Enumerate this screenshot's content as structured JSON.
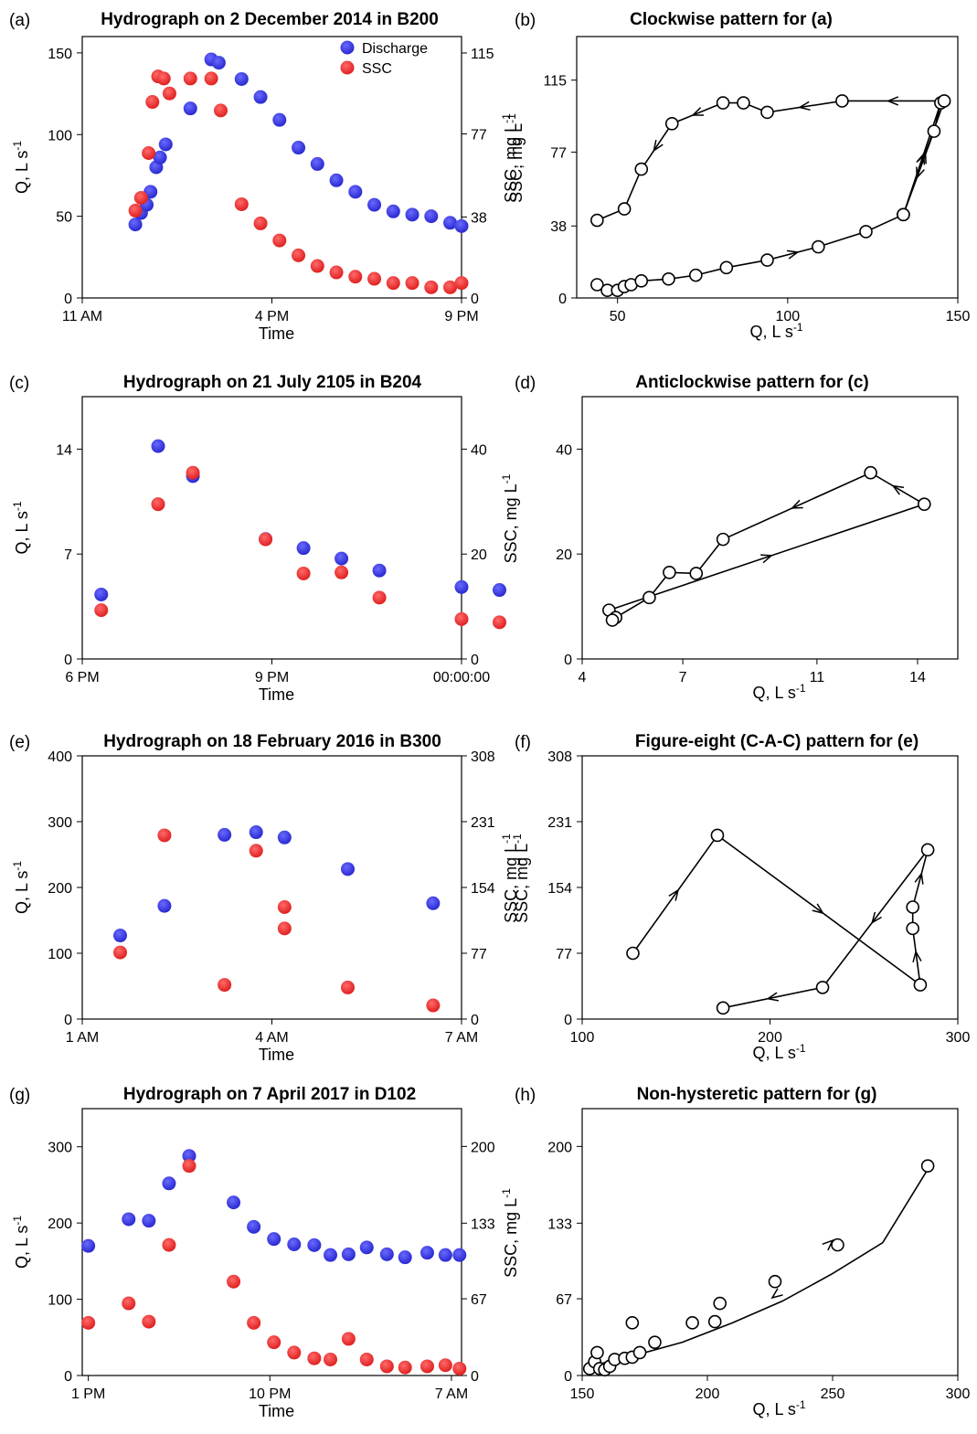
{
  "panels": [
    {
      "id": "a",
      "label": "(a)",
      "title": "Hydrograph on 2 December 2014 in B200",
      "kind": "hydrograph",
      "xlabel": "Time",
      "ylabel": "Q, L s",
      "ylabel_sup": "-1",
      "y2label": "SSC, mg L",
      "y2label_sup": "-1",
      "xticks": [
        {
          "v": 11,
          "l": "11 AM"
        },
        {
          "v": 16,
          "l": "4 PM"
        },
        {
          "v": 21,
          "l": "9 PM"
        }
      ],
      "xlim": [
        11,
        21
      ],
      "ylim": [
        0,
        160
      ],
      "y2lim": [
        0,
        122.7
      ],
      "yticks": [
        0,
        50,
        100,
        150
      ],
      "y2ticks": [
        0,
        38,
        77,
        115
      ],
      "legend": [
        {
          "label": "Discharge",
          "color": "#3333dd"
        },
        {
          "label": "SSC",
          "color": "#ee2222"
        }
      ]
    },
    {
      "id": "b",
      "label": "(b)",
      "title": "Clockwise pattern for (a)",
      "kind": "hysteresis",
      "xlabel": "Q, L s",
      "xlabel_sup": "-1",
      "ylabel": "SSC, mg L",
      "ylabel_sup": "-1",
      "xlim": [
        38,
        150
      ],
      "ylim": [
        0,
        138
      ],
      "xticks": [
        50,
        100,
        150
      ],
      "yticks": [
        0,
        38,
        77,
        115
      ]
    },
    {
      "id": "c",
      "label": "(c)",
      "title": "Hydrograph on 21 July 2105 in B204",
      "kind": "hydrograph",
      "xlabel": "Time",
      "ylabel": "Q, L s",
      "ylabel_sup": "-1",
      "y2label": "SSC, mg L",
      "y2label_sup": "-1",
      "xticks": [
        {
          "v": 18,
          "l": "6 PM"
        },
        {
          "v": 21,
          "l": "9 PM"
        },
        {
          "v": 24,
          "l": "00:00:00"
        }
      ],
      "xlim": [
        18,
        24
      ],
      "ylim": [
        0,
        17.5
      ],
      "y2lim": [
        0,
        50
      ],
      "yticks": [
        0,
        7,
        14
      ],
      "y2ticks": [
        0,
        20,
        40
      ]
    },
    {
      "id": "d",
      "label": "(d)",
      "title": "Anticlockwise pattern for (c)",
      "kind": "hysteresis",
      "xlabel": "Q, L s",
      "xlabel_sup": "-1",
      "ylabel": "",
      "xlim": [
        4,
        15.2
      ],
      "ylim": [
        0,
        50
      ],
      "xticks": [
        4,
        7,
        11,
        14
      ],
      "yticks": [
        0,
        20,
        40
      ]
    },
    {
      "id": "e",
      "label": "(e)",
      "title": "Hydrograph on 18 February 2016 in B300",
      "kind": "hydrograph",
      "xlabel": "Time",
      "ylabel": "Q, L s",
      "ylabel_sup": "-1",
      "y2label": "SSC, mg L",
      "y2label_sup": "-1",
      "xticks": [
        {
          "v": 1,
          "l": "1 AM"
        },
        {
          "v": 4,
          "l": "4 AM"
        },
        {
          "v": 7,
          "l": "7 AM"
        }
      ],
      "xlim": [
        1,
        7
      ],
      "ylim": [
        0,
        400
      ],
      "y2lim": [
        0,
        308
      ],
      "yticks": [
        0,
        100,
        200,
        300,
        400
      ],
      "y2ticks": [
        0,
        77,
        154,
        231,
        308
      ]
    },
    {
      "id": "f",
      "label": "(f)",
      "title": "Figure-eight (C-A-C) pattern for (e)",
      "kind": "hysteresis",
      "xlabel": "Q, L s",
      "xlabel_sup": "-1",
      "ylabel": "SSC, mg L",
      "ylabel_sup": "-1",
      "xlim": [
        100,
        300
      ],
      "ylim": [
        0,
        308
      ],
      "xticks": [
        100,
        200,
        300
      ],
      "yticks": [
        0,
        77,
        154,
        231,
        308
      ]
    },
    {
      "id": "g",
      "label": "(g)",
      "title": "Hydrograph on 7 April 2017 in D102",
      "kind": "hydrograph",
      "xlabel": "Time",
      "ylabel": "Q, L s",
      "ylabel_sup": "-1",
      "y2label": "SSC, mg L",
      "y2label_sup": "-1",
      "xticks": [
        {
          "v": 13,
          "l": "1 PM"
        },
        {
          "v": 22,
          "l": "10 PM"
        },
        {
          "v": 31,
          "l": "7 AM"
        }
      ],
      "xlim": [
        12.7,
        31.5
      ],
      "ylim": [
        0,
        350
      ],
      "y2lim": [
        0,
        233
      ],
      "yticks": [
        0,
        100,
        200,
        300
      ],
      "y2ticks": [
        0,
        67,
        133,
        200
      ]
    },
    {
      "id": "h",
      "label": "(h)",
      "title": "Non-hysteretic pattern for (g)",
      "kind": "hysteresis",
      "xlabel": "Q, L s",
      "xlabel_sup": "-1",
      "ylabel": "",
      "xlim": [
        150,
        300
      ],
      "ylim": [
        0,
        233
      ],
      "xticks": [
        150,
        200,
        250,
        300
      ],
      "yticks": [
        0,
        67,
        133,
        200
      ]
    }
  ],
  "chart_data": [
    {
      "type": "scatter",
      "panel": "a",
      "series": [
        {
          "name": "Discharge",
          "axis": "left",
          "x": [
            12.4,
            12.55,
            12.7,
            12.8,
            12.95,
            13.05,
            13.2,
            13.85,
            14.4,
            14.6,
            15.2,
            15.7,
            16.2,
            16.7,
            17.2,
            17.7,
            18.2,
            18.7,
            19.2,
            19.7,
            20.2,
            20.7,
            21.0
          ],
          "y": [
            45,
            52,
            57,
            65,
            80,
            86,
            94,
            116,
            146,
            144,
            134,
            123,
            109,
            92,
            82,
            72,
            65,
            57,
            53,
            51,
            50,
            46,
            44
          ]
        },
        {
          "name": "SSC",
          "axis": "right",
          "x": [
            12.4,
            12.55,
            12.75,
            12.85,
            13.0,
            13.15,
            13.3,
            13.85,
            14.4,
            14.65,
            15.2,
            15.7,
            16.2,
            16.7,
            17.2,
            17.7,
            18.2,
            18.7,
            19.2,
            19.7,
            20.2,
            20.7,
            21.0
          ],
          "y": [
            41,
            47,
            68,
            92,
            104,
            103,
            96,
            103,
            103,
            88,
            44,
            35,
            27,
            20,
            15,
            12,
            10,
            9,
            7,
            7,
            5,
            5,
            7
          ]
        }
      ]
    },
    {
      "type": "line",
      "panel": "b",
      "x": [
        44,
        47,
        50,
        52,
        54,
        57,
        65,
        73,
        82,
        94,
        109,
        123,
        134,
        145,
        143,
        134,
        146,
        116,
        94,
        87,
        81,
        66,
        57,
        52,
        44
      ],
      "y": [
        7,
        4,
        4,
        6,
        7,
        9,
        10,
        12,
        16,
        20,
        27,
        35,
        44,
        103,
        88,
        44,
        104,
        104,
        98,
        103,
        103,
        92,
        68,
        47,
        41
      ]
    },
    {
      "type": "scatter",
      "panel": "c",
      "series": [
        {
          "name": "Discharge",
          "axis": "left",
          "x": [
            18.3,
            19.2,
            19.75,
            20.9,
            21.5,
            22.1,
            22.7,
            24.0,
            24.6
          ],
          "y": [
            4.3,
            14.2,
            12.2,
            8.0,
            7.4,
            6.7,
            5.9,
            4.8,
            4.6
          ]
        },
        {
          "name": "SSC",
          "axis": "right",
          "x": [
            18.3,
            19.2,
            19.75,
            20.9,
            21.5,
            22.1,
            22.7,
            24.0,
            24.6
          ],
          "y": [
            9.3,
            29.5,
            35.5,
            22.8,
            16.3,
            16.5,
            11.7,
            7.6,
            7
          ]
        }
      ]
    },
    {
      "type": "line",
      "panel": "d",
      "x": [
        4.8,
        14.2,
        12.6,
        8.2,
        7.4,
        6.6,
        6.0,
        5.0,
        4.9
      ],
      "y": [
        9.3,
        29.5,
        35.5,
        22.8,
        16.3,
        16.5,
        11.7,
        7.9,
        7.4
      ]
    },
    {
      "type": "scatter",
      "panel": "e",
      "series": [
        {
          "name": "Discharge",
          "axis": "left",
          "x": [
            1.6,
            2.3,
            3.25,
            3.75,
            4.2,
            5.2,
            6.55
          ],
          "y": [
            127,
            172,
            280,
            284,
            276,
            228,
            176
          ]
        },
        {
          "name": "SSC",
          "axis": "right",
          "x": [
            1.6,
            2.3,
            3.25,
            3.75,
            4.2,
            4.2,
            5.2,
            6.55
          ],
          "y": [
            78,
            215,
            40,
            197,
            106,
            131,
            37,
            16
          ]
        }
      ]
    },
    {
      "type": "line",
      "panel": "f",
      "x": [
        127,
        172,
        280,
        276,
        276,
        284,
        228,
        175
      ],
      "y": [
        77,
        215,
        40,
        106,
        131,
        198,
        37,
        13
      ]
    },
    {
      "type": "scatter",
      "panel": "g",
      "series": [
        {
          "name": "Discharge",
          "axis": "left",
          "x": [
            13.0,
            15.0,
            16.0,
            17.0,
            18.0,
            20.2,
            21.2,
            22.2,
            23.2,
            24.2,
            25.0,
            25.9,
            26.8,
            27.8,
            28.7,
            29.8,
            30.7,
            31.4
          ],
          "y": [
            170,
            205,
            203,
            252,
            288,
            227,
            195,
            179,
            172,
            171,
            158,
            159,
            168,
            159,
            155,
            161,
            158,
            158
          ]
        },
        {
          "name": "SSC",
          "axis": "right",
          "x": [
            13.0,
            15.0,
            16.0,
            17.0,
            18.0,
            20.2,
            21.2,
            22.2,
            23.2,
            24.2,
            25.0,
            25.9,
            26.8,
            27.8,
            28.7,
            29.8,
            30.7,
            31.4
          ],
          "y": [
            46,
            63,
            47,
            114,
            183,
            82,
            46,
            29,
            20,
            15,
            14,
            32,
            14,
            8,
            7,
            8,
            9,
            6
          ]
        }
      ]
    },
    {
      "type": "scatter",
      "panel": "h",
      "x": [
        153,
        155,
        156,
        157,
        159,
        161,
        163,
        167,
        170,
        170,
        173,
        179,
        194,
        203,
        205,
        227,
        252,
        288
      ],
      "y": [
        6,
        12,
        20,
        6,
        5,
        8,
        14,
        15,
        16,
        46,
        20,
        29,
        46,
        47,
        63,
        82,
        114,
        183
      ],
      "fit": {
        "x": [
          153,
          170,
          190,
          210,
          230,
          250,
          270,
          288
        ],
        "y": [
          8,
          17,
          29,
          46,
          65,
          89,
          116,
          180
        ]
      }
    }
  ]
}
